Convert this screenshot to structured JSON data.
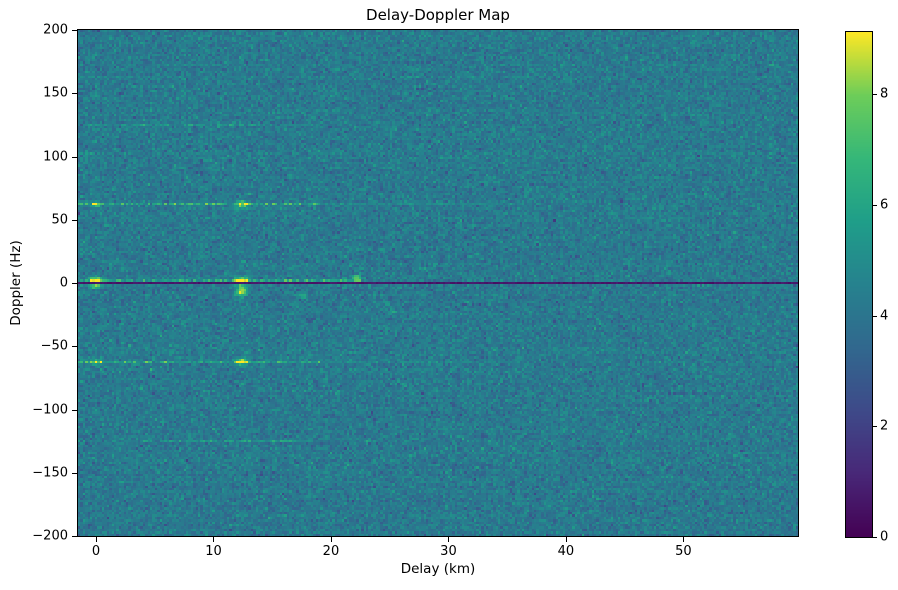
{
  "chart_data": {
    "type": "heatmap",
    "title": "Delay-Doppler Map",
    "xlabel": "Delay (km)",
    "ylabel": "Doppler (Hz)",
    "x_range_km": [
      -1.53,
      59.75
    ],
    "y_range_hz": [
      -200,
      200
    ],
    "x_ticks": [
      {
        "value": 0,
        "label": "0"
      },
      {
        "value": 10,
        "label": "10"
      },
      {
        "value": 20,
        "label": "20"
      },
      {
        "value": 30,
        "label": "30"
      },
      {
        "value": 40,
        "label": "40"
      },
      {
        "value": 50,
        "label": "50"
      }
    ],
    "y_ticks": [
      {
        "value": 200,
        "label": "200"
      },
      {
        "value": 150,
        "label": "150"
      },
      {
        "value": 100,
        "label": "100"
      },
      {
        "value": 50,
        "label": "50"
      },
      {
        "value": 0,
        "label": "0"
      },
      {
        "value": -50,
        "label": "−50"
      },
      {
        "value": -100,
        "label": "−100"
      },
      {
        "value": -150,
        "label": "−150"
      },
      {
        "value": -200,
        "label": "−200"
      }
    ],
    "colorbar": {
      "vmin": 0,
      "vmax": 9.12,
      "ticks": [
        {
          "value": 0,
          "label": "0"
        },
        {
          "value": 2,
          "label": "2"
        },
        {
          "value": 4,
          "label": "4"
        },
        {
          "value": 6,
          "label": "6"
        },
        {
          "value": 8,
          "label": "8"
        }
      ],
      "colormap": "viridis",
      "colors": [
        "#440154",
        "#482878",
        "#3e4a89",
        "#31688e",
        "#26828e",
        "#1f9e89",
        "#35b779",
        "#6dcd59",
        "#fde725"
      ]
    },
    "noise": {
      "mean": 4.2,
      "std": 0.55,
      "row_variation": 0.08,
      "seed": 42
    },
    "grid_bins": {
      "nx": 300,
      "ny": 211
    },
    "features": {
      "zero_doppler_notch": {
        "doppler_hz": 0,
        "value": 0.4,
        "half_width_hz": 1.0
      },
      "doppler_stripes": [
        {
          "doppler_hz": 2,
          "delay_span_km": [
            -1.53,
            22.5
          ],
          "value": 6.0
        },
        {
          "doppler_hz": 62,
          "delay_span_km": [
            -1.53,
            19
          ],
          "value": 6.1,
          "tail_span_km": [
            19,
            36
          ],
          "tail_value": 4.8
        },
        {
          "doppler_hz": -62,
          "delay_span_km": [
            -1.53,
            19
          ],
          "value": 6.1,
          "tail_span_km": [
            19,
            36
          ],
          "tail_value": 4.8
        },
        {
          "doppler_hz": 125,
          "delay_span_km": [
            -1,
            19
          ],
          "value": 5.2
        },
        {
          "doppler_hz": -125,
          "delay_span_km": [
            4,
            17
          ],
          "value": 5.2
        }
      ],
      "hotspots": [
        {
          "delay_km": 0,
          "doppler_hz": 2.5,
          "value": 9.0,
          "sigma_km": 0.5,
          "sigma_hz": 2.5
        },
        {
          "delay_km": 0,
          "doppler_hz": -2.5,
          "value": 7.2,
          "sigma_km": 0.4,
          "sigma_hz": 2.0
        },
        {
          "delay_km": 12.4,
          "doppler_hz": 2,
          "value": 9.1,
          "sigma_km": 0.6,
          "sigma_hz": 2.5
        },
        {
          "delay_km": 12.4,
          "doppler_hz": -6,
          "value": 8.6,
          "sigma_km": 0.45,
          "sigma_hz": 5.0
        },
        {
          "delay_km": 12.4,
          "doppler_hz": 62,
          "value": 8.4,
          "sigma_km": 0.5,
          "sigma_hz": 3.0
        },
        {
          "delay_km": 12.4,
          "doppler_hz": -62,
          "value": 8.2,
          "sigma_km": 0.5,
          "sigma_hz": 3.0
        },
        {
          "delay_km": 0,
          "doppler_hz": 62,
          "value": 7.8,
          "sigma_km": 0.4,
          "sigma_hz": 2.0
        },
        {
          "delay_km": 0,
          "doppler_hz": -62,
          "value": 7.6,
          "sigma_km": 0.4,
          "sigma_hz": 2.0
        },
        {
          "delay_km": 22.2,
          "doppler_hz": 4,
          "value": 8.2,
          "sigma_km": 0.35,
          "sigma_hz": 2.0
        },
        {
          "delay_km": 17.6,
          "doppler_hz": -10,
          "value": 7.0,
          "sigma_km": 0.3,
          "sigma_hz": 2.0
        },
        {
          "delay_km": 25.3,
          "doppler_hz": -22,
          "value": 6.6,
          "sigma_km": 0.3,
          "sigma_hz": 1.5
        }
      ]
    }
  }
}
